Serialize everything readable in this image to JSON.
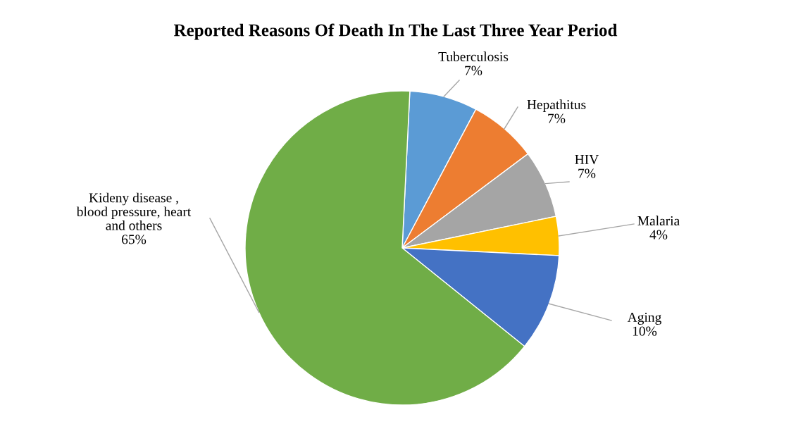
{
  "chart_data": {
    "type": "pie",
    "title": "Reported Reasons Of Death In The Last Three Year Period",
    "categories": [
      "Tuberculosis",
      "Hepathitus",
      "HIV",
      "Malaria",
      "Aging",
      "Kideny disease ,\nblood pressure, heart\nand others"
    ],
    "values": [
      7,
      7,
      7,
      4,
      10,
      65
    ],
    "colors": [
      "#5b9bd5",
      "#ed7d31",
      "#a5a5a5",
      "#ffc000",
      "#4472c4",
      "#70ad47"
    ],
    "value_labels": [
      "7%",
      "7%",
      "7%",
      "4%",
      "10%",
      "65%"
    ],
    "legend": false
  }
}
